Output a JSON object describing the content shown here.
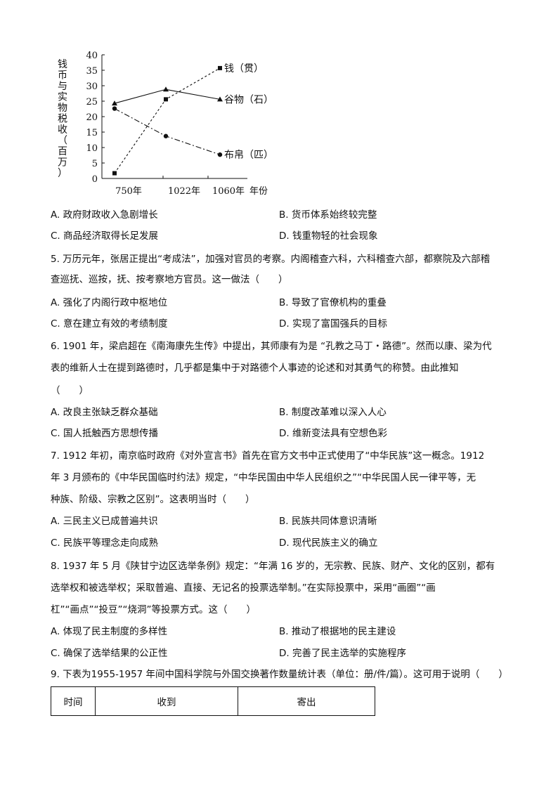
{
  "chart_data": {
    "type": "line",
    "ylabel": "钱币与实物税收（百万）",
    "xlabel": "年份",
    "categories": [
      "750年",
      "1022年",
      "1060年"
    ],
    "ylim": [
      0,
      40
    ],
    "yticks": [
      "0",
      "5",
      "10",
      "15",
      "20",
      "25",
      "30",
      "35",
      "40"
    ],
    "grid": false,
    "series": [
      {
        "name": "钱（贯）",
        "values": [
          1.7,
          25.6,
          35.7
        ],
        "marker": "square",
        "style": "dotted"
      },
      {
        "name": "谷物（石）",
        "values": [
          24.3,
          28.8,
          25.6
        ],
        "marker": "triangle",
        "style": "solid"
      },
      {
        "name": "布帛（匹）",
        "values": [
          22.6,
          13.7,
          7.7
        ],
        "marker": "circle",
        "style": "dash-dot"
      }
    ]
  },
  "q4": {
    "options": [
      "A. 政府财政收入急剧增长",
      "B. 货币体系始终较完整",
      "C. 商品经济取得长足发展",
      "D. 钱重物轻的社会现象"
    ]
  },
  "q5": {
    "lines": [
      "5. 万历元年，张居正提出“考成法”，加强对官员的考察。内阁稽查六科，六科稽查六部，都察院及六部稽",
      "查巡抚、巡按，抚、按考察地方官员。这一做法（　　）"
    ],
    "options": [
      "A. 强化了内阁行政中枢地位",
      "B. 导致了官僚机构的重叠",
      "C. 意在建立有效的考绩制度",
      "D. 实现了富国强兵的目标"
    ]
  },
  "q6": {
    "lines": [
      "6. 1901 年，梁启超在《南海康先生传》中提出，其师康有为是 “孔教之马丁・路德”。然而以康、梁为代",
      "表的维新人士在提到路德时，几乎都是集中于对路德个人事迹的论述和对其勇气的称赞。由此推知",
      "（　　）"
    ],
    "options": [
      "A. 改良主张缺乏群众基础",
      "B. 制度改革难以深入人心",
      "C. 国人抵触西方思想传播",
      "D. 维新变法具有空想色彩"
    ]
  },
  "q7": {
    "lines": [
      "7. 1912 年初，南京临时政府《对外宣言书》首先在官方文书中正式使用了“中华民族”这一概念。1912",
      "年 3 月颁布的《中华民国临时约法》规定，“中华民国由中华人民组织之”“中华民国人民一律平等，无",
      "种族、阶级、宗教之区别”。这表明当时（　　）"
    ],
    "options": [
      "A. 三民主义已成普遍共识",
      "B. 民族共同体意识清晰",
      "C. 民族平等理念走向成熟",
      "D. 现代民族主义的确立"
    ]
  },
  "q8": {
    "lines": [
      "8. 1937 年 5 月《陕甘宁边区选举条例》规定：“年满 16 岁的，无宗教、民族、财产、文化的区别，都有",
      "选举权和被选举权；采取普遍、直接、无记名的投票选举制。”在实际投票中，采用“画圈”“画",
      "杠”“画点”“投豆”“烧洞”等投票方式。这（　　）"
    ],
    "options": [
      "A. 体现了民主制度的多样性",
      "B. 推动了根据地的民主建设",
      "C. 确保了选举结果的公正性",
      "D. 完善了民主选举的实施程序"
    ]
  },
  "q9": {
    "lines": [
      "9. 下表为1955-1957 年间中国科学院与外国交换著作数量统计表（单位：册/件/篇）。这可用于说明（　　）"
    ],
    "table_headers": [
      "时间",
      "收到",
      "寄出"
    ]
  }
}
